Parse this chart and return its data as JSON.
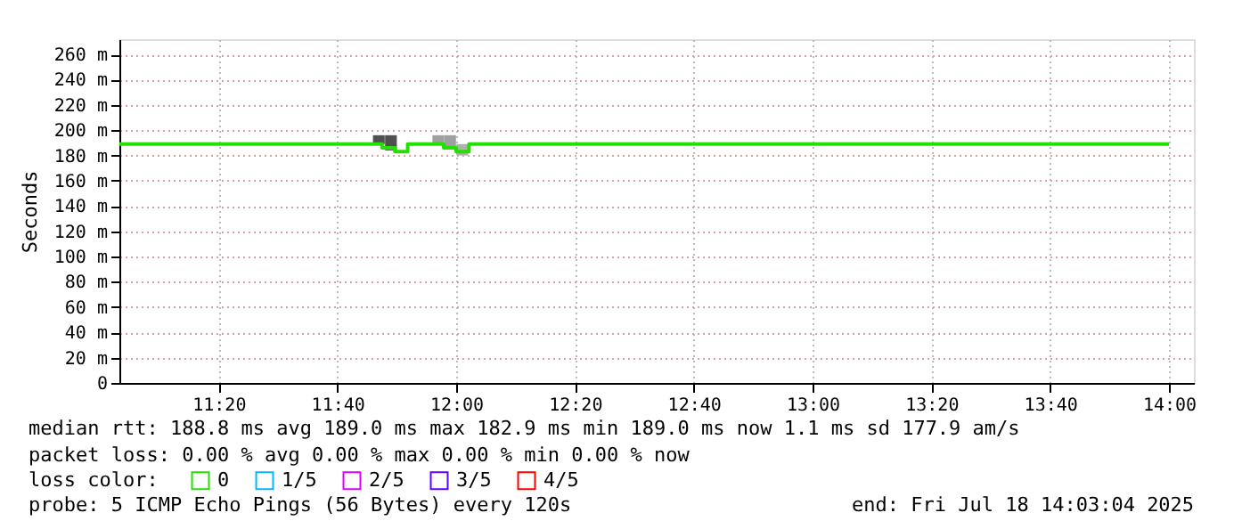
{
  "chart_data": {
    "type": "step",
    "ylabel": "Seconds",
    "xlim": [
      11.055,
      14.07
    ],
    "xticks": [
      {
        "value": 11.3333,
        "label": "11:20"
      },
      {
        "value": 11.6667,
        "label": "11:40"
      },
      {
        "value": 12,
        "label": "12:00"
      },
      {
        "value": 12.3333,
        "label": "12:20"
      },
      {
        "value": 12.6667,
        "label": "12:40"
      },
      {
        "value": 13,
        "label": "13:00"
      },
      {
        "value": 13.3333,
        "label": "13:20"
      },
      {
        "value": 13.6667,
        "label": "13:40"
      },
      {
        "value": 14,
        "label": "14:00"
      }
    ],
    "ylim": [
      0,
      272
    ],
    "yticks": [
      0,
      {
        "value": 20,
        "label": "20 m"
      },
      {
        "value": 40,
        "label": "40 m"
      },
      {
        "value": 60,
        "label": "60 m"
      },
      {
        "value": 80,
        "label": "80 m"
      },
      {
        "value": 100,
        "label": "100 m"
      },
      {
        "value": 120,
        "label": "120 m"
      },
      {
        "value": 140,
        "label": "140 m"
      },
      {
        "value": 160,
        "label": "160 m"
      },
      {
        "value": 180,
        "label": "180 m"
      },
      {
        "value": 200,
        "label": "200 m"
      },
      {
        "value": 220,
        "label": "220 m"
      },
      {
        "value": 240,
        "label": "240 m"
      },
      {
        "value": 260,
        "label": "260 m"
      }
    ],
    "series": [
      {
        "type": "bar",
        "x": [
          11.783,
          11.817,
          11.95,
          11.983,
          12.017
        ],
        "base": [
          189,
          184,
          189,
          186,
          180
        ],
        "values": [
          7,
          12,
          7,
          10,
          9
        ],
        "colors": [
          "#505050",
          "#505050",
          "#a0a0a0",
          "#a0a0a0",
          "#b0b0b0"
        ]
      },
      {
        "name": "0",
        "color": "#22e000",
        "x": [
          11.055,
          11.792,
          11.828,
          11.864,
          11.965,
          12.0,
          12.036,
          14.0
        ],
        "values": [
          189,
          186,
          183,
          189,
          186,
          183,
          189,
          189
        ]
      },
      {
        "name": "1/5",
        "color": "#00b8ff"
      },
      {
        "name": "2/5",
        "color": "#e000ff"
      },
      {
        "name": "3/5",
        "color": "#6000ff"
      },
      {
        "name": "4/5",
        "color": "#ff0000"
      }
    ],
    "legend_title": "loss color:",
    "legend": "bottom",
    "grid": true,
    "annotations": [
      "median rtt:  188.8 ms avg  189.0 ms max  182.9 ms min  189.0 ms now  1.1 ms sd  177.9   am/s",
      "packet loss: 0.00 % avg  0.00 % max  0.00 % min  0.00 % now",
      "probe:       5 ICMP Echo Pings (56 Bytes) every 120s",
      "end: Fri Jul 18 14:03:04 2025"
    ]
  }
}
